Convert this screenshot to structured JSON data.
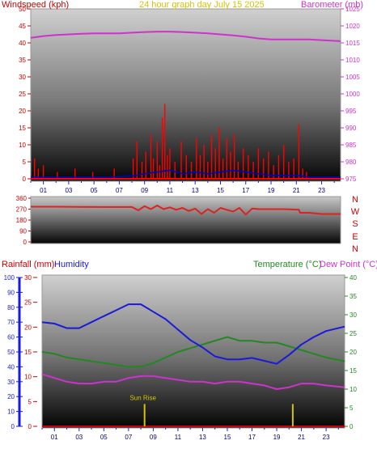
{
  "header": {
    "windspeed_label": "Windspeed (kph)",
    "title": "24 hour graph day July 15 2025",
    "barometer_label": "Barometer (mb)"
  },
  "colors": {
    "wind": "#ff0000",
    "gust": "#0000cc",
    "barometer": "#cc33cc",
    "direction": "#dd2222",
    "temperature": "#228822",
    "humidity": "#1a1add",
    "dewpoint": "#cc33cc",
    "title": "#d4c400",
    "sunrise": "#d4c400",
    "rainfall": "#cc0000"
  },
  "x_ticks": [
    "01",
    "03",
    "05",
    "07",
    "09",
    "11",
    "13",
    "15",
    "17",
    "19",
    "21",
    "23"
  ],
  "chart_data": [
    {
      "type": "line",
      "name": "wind-barometer",
      "title": "24 hour graph day July 15 2025",
      "ylabel_left": "Windspeed (kph)",
      "ylabel_right": "Barometer (mb)",
      "ylim_left": [
        0,
        50
      ],
      "ylim_right": [
        975,
        1025
      ],
      "yticks_left": [
        0,
        5,
        10,
        15,
        20,
        25,
        30,
        35,
        40,
        45,
        50
      ],
      "yticks_right": [
        975,
        980,
        985,
        990,
        995,
        1000,
        1005,
        1010,
        1015,
        1020,
        1025
      ],
      "xlim": [
        0,
        24.5
      ],
      "barometer": {
        "x": [
          0,
          1,
          2,
          3,
          4,
          5,
          6,
          7,
          8,
          9,
          10,
          11,
          12,
          13,
          14,
          15,
          16,
          17,
          18,
          19,
          20,
          21,
          22,
          23,
          24.5
        ],
        "y": [
          1016.5,
          1017,
          1017.3,
          1017.5,
          1017.7,
          1017.8,
          1017.8,
          1017.8,
          1018,
          1018.2,
          1018.3,
          1018.3,
          1018.2,
          1018,
          1017.8,
          1017.5,
          1017.2,
          1016.8,
          1016.3,
          1016,
          1016,
          1016,
          1016,
          1015.8,
          1015.5
        ]
      },
      "wind_spikes": {
        "x": [
          0.3,
          0.6,
          1.0,
          2.1,
          3.5,
          4.9,
          6.6,
          8.1,
          8.4,
          8.8,
          9.1,
          9.5,
          9.7,
          10.0,
          10.2,
          10.4,
          10.6,
          10.8,
          11.0,
          11.4,
          11.9,
          12.3,
          12.7,
          13.1,
          13.4,
          13.7,
          14.0,
          14.3,
          14.6,
          14.9,
          15.2,
          15.5,
          15.8,
          16.1,
          16.4,
          16.8,
          17.2,
          17.6,
          18.0,
          18.4,
          18.8,
          19.2,
          19.6,
          20.0,
          20.4,
          20.8,
          21.2,
          21.5,
          21.8
        ],
        "y": [
          6,
          3,
          4,
          2,
          3,
          2,
          3,
          6,
          11,
          5,
          8,
          13,
          6,
          11,
          4,
          18,
          22,
          7,
          9,
          5,
          11,
          7,
          5,
          12,
          7,
          10,
          5,
          13,
          9,
          15,
          6,
          12,
          8,
          13,
          5,
          9,
          7,
          5,
          9,
          6,
          8,
          4,
          7,
          10,
          5,
          6,
          16,
          3,
          2
        ]
      },
      "gust": {
        "x": [
          0,
          2,
          4,
          6,
          8,
          9,
          10,
          11,
          12,
          13,
          14,
          15,
          16,
          17,
          18,
          19,
          20,
          21,
          22,
          24.5
        ],
        "y": [
          0.5,
          0.5,
          0.5,
          0.5,
          0.8,
          1.5,
          2,
          2.5,
          1.5,
          2,
          1.5,
          2,
          2.5,
          2,
          1.5,
          1,
          1,
          1,
          0.5,
          0.5
        ]
      }
    },
    {
      "type": "line",
      "name": "wind-direction",
      "ylim": [
        0,
        360
      ],
      "yticks": [
        0,
        90,
        180,
        270,
        360
      ],
      "ytick_labels": [
        "0",
        "90",
        "180",
        "270",
        "360"
      ],
      "compass_labels": [
        "N",
        "W",
        "S",
        "E",
        "N"
      ],
      "xlim": [
        0,
        24.5
      ],
      "x": [
        0,
        2,
        4,
        6,
        8,
        8.5,
        9.0,
        9.5,
        10,
        10.5,
        11,
        11.5,
        12,
        12.5,
        13,
        13.5,
        14,
        14.5,
        15,
        15.5,
        16,
        16.5,
        17,
        17.5,
        18,
        19,
        20,
        21.2,
        21.3,
        22,
        23,
        24.5
      ],
      "y": [
        290,
        290,
        288,
        287,
        287,
        260,
        295,
        270,
        300,
        270,
        285,
        265,
        280,
        255,
        275,
        230,
        270,
        240,
        280,
        265,
        250,
        280,
        225,
        275,
        270,
        270,
        270,
        265,
        240,
        240,
        230,
        230
      ]
    },
    {
      "type": "line",
      "name": "temperature-humidity",
      "ylabel_rainfall": "Rainfall (mm)",
      "ylabel_humidity": "Humidity",
      "ylabel_temperature": "Temperature (°C)",
      "ylabel_dewpoint": "Dew Point (°C)",
      "ylim_humidity": [
        0,
        100
      ],
      "ylim_rainfall": [
        0,
        30
      ],
      "ylim_temperature": [
        0,
        40
      ],
      "yticks_humidity": [
        0,
        10,
        20,
        30,
        40,
        50,
        60,
        70,
        80,
        90,
        100
      ],
      "yticks_rainfall": [
        0,
        5,
        10,
        15,
        20,
        25,
        30
      ],
      "yticks_temperature": [
        0,
        5,
        10,
        15,
        20,
        25,
        30,
        35,
        40
      ],
      "xlim": [
        0,
        24.5
      ],
      "humidity": {
        "x": [
          0,
          1,
          2,
          3,
          4,
          5,
          6,
          7,
          8,
          9,
          10,
          11,
          12,
          13,
          14,
          15,
          16,
          17,
          18,
          19,
          20,
          21,
          22,
          23,
          24.5
        ],
        "y": [
          70,
          69,
          66,
          66,
          70,
          74,
          78,
          82,
          82,
          77,
          72,
          65,
          58,
          53,
          47,
          45,
          45,
          46,
          44,
          42,
          48,
          55,
          60,
          64,
          67
        ]
      },
      "temperature": {
        "x": [
          0,
          1,
          2,
          3,
          4,
          5,
          6,
          7,
          8,
          9,
          10,
          11,
          12,
          13,
          14,
          15,
          16,
          17,
          18,
          19,
          20,
          21,
          22,
          23,
          24.5
        ],
        "y": [
          20,
          19.5,
          18.5,
          18,
          17.5,
          17,
          16.5,
          16,
          16,
          17,
          18.5,
          20,
          21,
          22,
          23,
          24,
          23,
          23,
          22.5,
          22.5,
          21.5,
          20.5,
          19.5,
          18.5,
          17.5
        ]
      },
      "dewpoint": {
        "x": [
          0,
          1,
          2,
          3,
          4,
          5,
          6,
          7,
          8,
          9,
          10,
          11,
          12,
          13,
          14,
          15,
          16,
          17,
          18,
          19,
          20,
          21,
          22,
          23,
          24.5
        ],
        "y": [
          14,
          13,
          12,
          11.5,
          11.5,
          12,
          12,
          13,
          13.5,
          13.5,
          13,
          12.5,
          12,
          12,
          11.5,
          12,
          12,
          11.5,
          11,
          10,
          10.5,
          11.5,
          11.5,
          11,
          10.5
        ]
      },
      "sunrise": {
        "label": "Sun Rise",
        "x": 8.3
      },
      "sunset_x": 20.3,
      "rainfall": {
        "x": [
          0,
          24.5
        ],
        "y": [
          0,
          0
        ]
      }
    }
  ]
}
